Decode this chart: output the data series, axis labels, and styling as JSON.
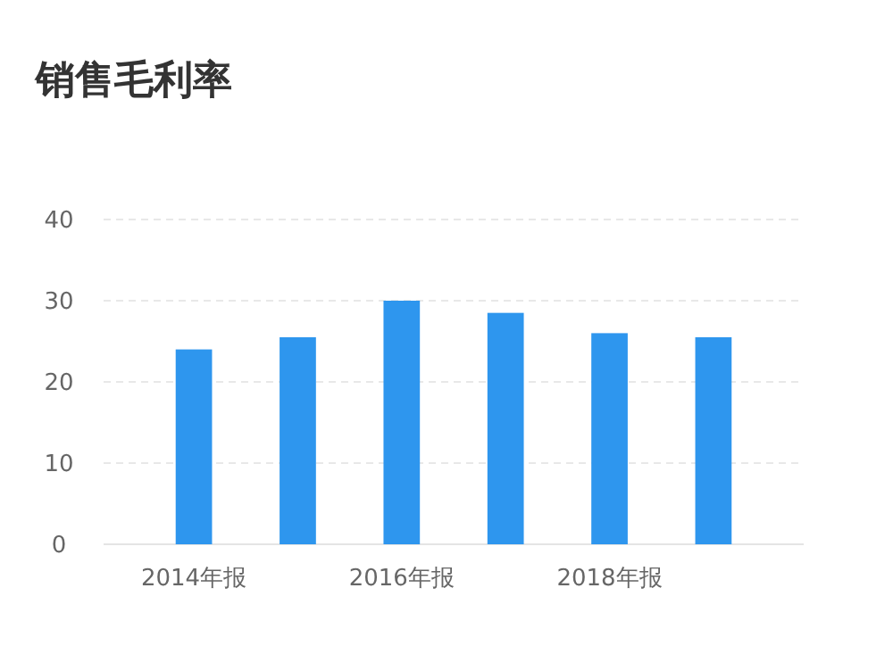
{
  "chart_data": {
    "type": "bar",
    "title": "销售毛利率",
    "categories": [
      "2014年报",
      null,
      "2016年报",
      null,
      "2018年报",
      null
    ],
    "values": [
      24,
      25.5,
      30,
      28.5,
      26,
      25.5
    ],
    "color": "#2e96ee",
    "ylim": [
      0,
      40
    ],
    "yticks": [
      0,
      10,
      20,
      30,
      40
    ],
    "grid": "y"
  }
}
